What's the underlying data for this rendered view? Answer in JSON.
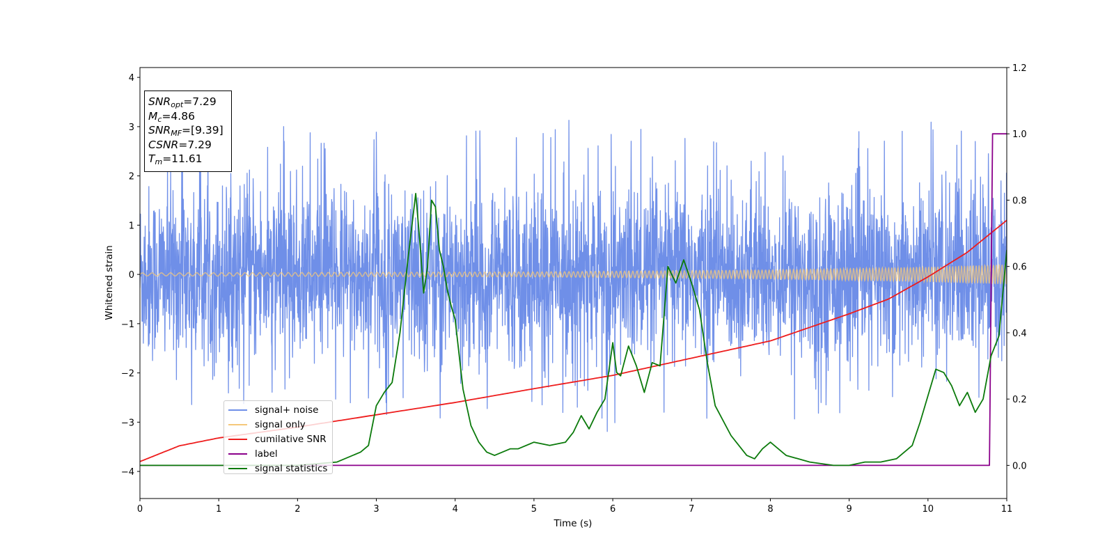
{
  "chart_data": {
    "type": "line",
    "xlabel": "Time (s)",
    "ylabel": "Whitened strain",
    "xlim": [
      0,
      11
    ],
    "ylim": [
      -4.55,
      4.2
    ],
    "y2lim": [
      -0.1,
      1.2
    ],
    "x_ticks": [
      "0",
      "1",
      "2",
      "3",
      "4",
      "5",
      "6",
      "7",
      "8",
      "9",
      "10",
      "11"
    ],
    "y_ticks": [
      {
        "value": 4,
        "label": "4"
      },
      {
        "value": 3,
        "label": "3"
      },
      {
        "value": 2,
        "label": "2"
      },
      {
        "value": 1,
        "label": "1"
      },
      {
        "value": 0,
        "label": "0"
      },
      {
        "value": -1,
        "label": "−1"
      },
      {
        "value": -2,
        "label": "−2"
      },
      {
        "value": -3,
        "label": "−3"
      },
      {
        "value": -4,
        "label": "−4"
      }
    ],
    "y2_ticks": [
      {
        "value": 0.0,
        "label": "0.0"
      },
      {
        "value": 0.2,
        "label": "0.2"
      },
      {
        "value": 0.4,
        "label": "0.4"
      },
      {
        "value": 0.6,
        "label": "0.6"
      },
      {
        "value": 0.8,
        "label": "0.8"
      },
      {
        "value": 1.0,
        "label": "1.0"
      },
      {
        "value": 1.2,
        "label": "1.2"
      }
    ],
    "legend_position": "lower-left",
    "series": [
      {
        "name": "signal+ noise",
        "color": "#6f8fe8",
        "axis": "left",
        "description": "dense whitened noise, amplitude approx ±2, extremes",
        "envelope_points": {
          "t": [
            0.0,
            0.5,
            1.0,
            1.5,
            2.0,
            2.5,
            3.0,
            3.5,
            4.0,
            4.5,
            5.0,
            5.5,
            6.0,
            6.5,
            7.0,
            7.5,
            8.0,
            8.5,
            9.0,
            9.5,
            10.0,
            10.5,
            11.0
          ],
          "max": [
            2.3,
            2.9,
            2.7,
            2.8,
            3.4,
            2.6,
            2.9,
            3.3,
            2.7,
            3.1,
            3.0,
            3.5,
            3.0,
            3.0,
            2.8,
            3.0,
            2.9,
            2.9,
            2.9,
            2.9,
            3.1,
            3.0,
            2.6
          ],
          "min": [
            -2.6,
            -3.2,
            -2.7,
            -2.6,
            -2.8,
            -2.9,
            -3.0,
            -2.9,
            -3.6,
            -3.0,
            -3.0,
            -3.1,
            -3.4,
            -3.0,
            -3.4,
            -2.9,
            -3.3,
            -2.9,
            -3.1,
            -3.0,
            -3.1,
            -3.0,
            -2.4
          ]
        }
      },
      {
        "name": "signal only",
        "color": "#f5c87a",
        "axis": "left",
        "description": "chirp with slowly growing amplitude",
        "amplitude_points": {
          "t": [
            0,
            5,
            8,
            10,
            11
          ],
          "amp": [
            0.03,
            0.05,
            0.09,
            0.15,
            0.2
          ]
        }
      },
      {
        "name": "cumilative SNR",
        "color": "#ee1c1c",
        "axis": "left",
        "x": [
          0.0,
          0.5,
          1.0,
          2.0,
          3.0,
          4.0,
          5.0,
          6.0,
          7.0,
          8.0,
          9.0,
          9.5,
          10.0,
          10.5,
          11.0
        ],
        "y": [
          -3.8,
          -3.48,
          -3.32,
          -3.1,
          -2.85,
          -2.6,
          -2.32,
          -2.05,
          -1.7,
          -1.35,
          -0.8,
          -0.5,
          -0.05,
          0.45,
          1.1
        ]
      },
      {
        "name": "label",
        "color": "#8b008b",
        "axis": "right",
        "x": [
          0.0,
          10.78,
          10.82,
          11.0
        ],
        "y": [
          0.0,
          0.0,
          1.0,
          1.0
        ]
      },
      {
        "name": "signal statistics",
        "color": "#0b7a0b",
        "axis": "right",
        "x": [
          0.0,
          1.0,
          2.0,
          2.5,
          2.8,
          2.9,
          3.0,
          3.1,
          3.2,
          3.3,
          3.4,
          3.5,
          3.55,
          3.6,
          3.65,
          3.7,
          3.75,
          3.8,
          3.85,
          3.9,
          3.95,
          4.0,
          4.1,
          4.2,
          4.3,
          4.4,
          4.5,
          4.7,
          4.8,
          5.0,
          5.2,
          5.4,
          5.5,
          5.6,
          5.7,
          5.8,
          5.9,
          6.0,
          6.05,
          6.1,
          6.2,
          6.3,
          6.4,
          6.5,
          6.6,
          6.7,
          6.8,
          6.9,
          7.0,
          7.1,
          7.2,
          7.3,
          7.5,
          7.7,
          7.8,
          7.9,
          8.0,
          8.2,
          8.5,
          8.8,
          9.0,
          9.2,
          9.4,
          9.6,
          9.8,
          9.9,
          10.0,
          10.1,
          10.2,
          10.3,
          10.4,
          10.5,
          10.6,
          10.7,
          10.8,
          10.9,
          11.0
        ],
        "y": [
          0.0,
          0.0,
          0.0,
          0.01,
          0.04,
          0.06,
          0.18,
          0.22,
          0.25,
          0.4,
          0.62,
          0.82,
          0.68,
          0.52,
          0.6,
          0.8,
          0.78,
          0.65,
          0.6,
          0.53,
          0.48,
          0.44,
          0.23,
          0.12,
          0.07,
          0.04,
          0.03,
          0.05,
          0.05,
          0.07,
          0.06,
          0.07,
          0.1,
          0.15,
          0.11,
          0.16,
          0.2,
          0.37,
          0.28,
          0.27,
          0.36,
          0.3,
          0.22,
          0.31,
          0.3,
          0.6,
          0.55,
          0.62,
          0.55,
          0.47,
          0.31,
          0.18,
          0.09,
          0.03,
          0.02,
          0.05,
          0.07,
          0.03,
          0.01,
          0.0,
          0.0,
          0.01,
          0.01,
          0.02,
          0.06,
          0.13,
          0.21,
          0.29,
          0.28,
          0.24,
          0.18,
          0.22,
          0.16,
          0.2,
          0.33,
          0.39,
          0.65
        ]
      }
    ]
  },
  "stats_box": {
    "snr_opt": {
      "sym": "SNR",
      "sub": "opt",
      "value": "=7.29"
    },
    "mc": {
      "sym": "M",
      "sub": "c",
      "value": "=4.86"
    },
    "snr_mf": {
      "sym": "SNR",
      "sub": "MF",
      "value": "=[9.39]"
    },
    "csnr": {
      "sym": "CSNR",
      "value": "=7.29"
    },
    "tm": {
      "sym": "T",
      "sub": "m",
      "value": "=11.61"
    }
  },
  "legend": {
    "items": [
      {
        "label": "signal+ noise",
        "color": "#6f8fe8"
      },
      {
        "label": "signal only",
        "color": "#f5c87a"
      },
      {
        "label": "cumilative SNR",
        "color": "#ee1c1c"
      },
      {
        "label": "label",
        "color": "#8b008b"
      },
      {
        "label": "signal statistics",
        "color": "#0b7a0b"
      }
    ]
  }
}
